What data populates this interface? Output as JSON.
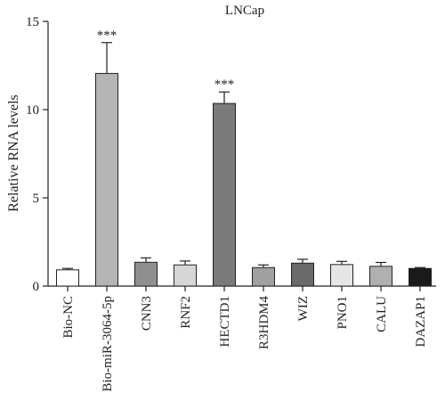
{
  "chart_data": {
    "type": "bar",
    "title": "LNCap",
    "ylabel": "Relative RNA levels",
    "xlabel": "",
    "ylim": [
      0,
      15
    ],
    "yticks": [
      0,
      5,
      10,
      15
    ],
    "grid": false,
    "categories": [
      "Bio-NC",
      "Bio-miR-3064-5p",
      "CNN3",
      "RNF2",
      "HECTD1",
      "R3HDM4",
      "WIZ",
      "PNO1",
      "CALU",
      "DAZAP1"
    ],
    "values": [
      0.92,
      12.05,
      1.35,
      1.2,
      10.35,
      1.05,
      1.3,
      1.22,
      1.12,
      1.0
    ],
    "errors": [
      0.08,
      1.75,
      0.25,
      0.22,
      0.65,
      0.15,
      0.22,
      0.18,
      0.22,
      0.05
    ],
    "annotations": [
      "",
      "***",
      "",
      "",
      "***",
      "",
      "",
      "",
      "",
      ""
    ],
    "colors": [
      "#ffffff",
      "#b4b4b4",
      "#8f8f8f",
      "#d6d6d6",
      "#7a7a7a",
      "#a0a0a0",
      "#6a6a6a",
      "#e6e6e6",
      "#b0b0b0",
      "#1a1a1a"
    ]
  }
}
